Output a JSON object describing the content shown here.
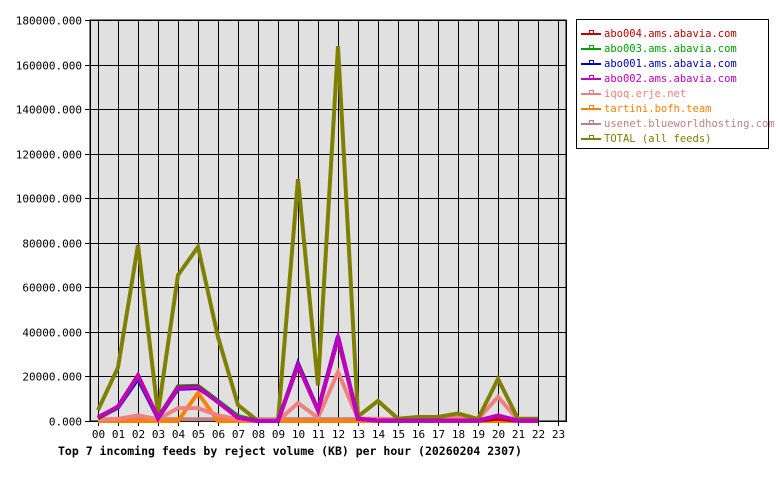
{
  "chart_data": {
    "type": "line",
    "title": "Top 7 incoming feeds by reject volume (KB) per hour (20260204 2307)",
    "xlabel": "",
    "ylabel": "",
    "ylim": [
      0,
      180000
    ],
    "grid": true,
    "legend_position": "right-top",
    "y_ticks": [
      "0.000",
      "20000.000",
      "40000.000",
      "60000.000",
      "80000.000",
      "100000.000",
      "120000.000",
      "140000.000",
      "160000.000",
      "180000.000"
    ],
    "y_tick_values": [
      0,
      20000,
      40000,
      60000,
      80000,
      100000,
      120000,
      140000,
      160000,
      180000
    ],
    "categories": [
      "00",
      "01",
      "02",
      "03",
      "04",
      "05",
      "06",
      "07",
      "08",
      "09",
      "10",
      "11",
      "12",
      "13",
      "14",
      "15",
      "16",
      "17",
      "18",
      "19",
      "20",
      "21",
      "22",
      "23"
    ],
    "series": [
      {
        "name": "abo004.ams.abavia.com",
        "color": "#c00000",
        "values": [
          1500,
          6500,
          20500,
          1500,
          15000,
          15300,
          8500,
          1500,
          0,
          0,
          25000,
          4800,
          37000,
          1000,
          200,
          200,
          200,
          200,
          200,
          200,
          1000,
          200,
          200,
          null
        ]
      },
      {
        "name": "abo003.ams.abavia.com",
        "color": "#00a000",
        "values": [
          1200,
          6300,
          20000,
          1500,
          15500,
          15800,
          9000,
          2200,
          0,
          0,
          25200,
          4800,
          37200,
          1000,
          200,
          200,
          200,
          200,
          200,
          200,
          1200,
          200,
          200,
          null
        ]
      },
      {
        "name": "abo001.ams.abavia.com",
        "color": "#0000c0",
        "values": [
          1300,
          6000,
          19000,
          1200,
          14500,
          14800,
          8800,
          2000,
          0,
          0,
          25800,
          5000,
          38000,
          1000,
          200,
          200,
          200,
          200,
          200,
          200,
          1500,
          200,
          200,
          null
        ]
      },
      {
        "name": "abo002.ams.abavia.com",
        "color": "#c000c0",
        "values": [
          1800,
          6300,
          20300,
          1500,
          14800,
          15200,
          8600,
          1500,
          0,
          0,
          25100,
          4900,
          37300,
          1000,
          200,
          200,
          200,
          200,
          200,
          200,
          2500,
          200,
          200,
          null
        ]
      },
      {
        "name": "iqoq.erje.net",
        "color": "#f08080",
        "values": [
          500,
          1000,
          2500,
          800,
          5800,
          5800,
          2500,
          800,
          0,
          0,
          8100,
          1500,
          22000,
          1000,
          1000,
          800,
          900,
          1000,
          1500,
          800,
          10800,
          500,
          500,
          null
        ]
      },
      {
        "name": "tartini.bofh.team",
        "color": "#ff8000",
        "values": [
          0,
          0,
          0,
          0,
          0,
          12600,
          0,
          0,
          0,
          0,
          0,
          0,
          0,
          0,
          0,
          0,
          0,
          0,
          0,
          0,
          0,
          0,
          0,
          null
        ]
      },
      {
        "name": "usenet.blueworldhosting.com",
        "color": "#c08080",
        "values": [
          800,
          800,
          800,
          800,
          800,
          800,
          800,
          800,
          800,
          800,
          800,
          800,
          800,
          800,
          800,
          800,
          800,
          800,
          800,
          800,
          800,
          800,
          800,
          null
        ]
      },
      {
        "name": "TOTAL (all feeds)",
        "color": "#808000",
        "values": [
          4900,
          24000,
          79000,
          3500,
          65500,
          78100,
          37700,
          7200,
          0,
          0,
          108600,
          16000,
          168300,
          2000,
          9000,
          1000,
          1800,
          1800,
          3400,
          900,
          18900,
          1000,
          1000,
          null
        ]
      }
    ]
  },
  "legend": {
    "items": [
      {
        "label": "abo004.ams.abavia.com",
        "color": "#c00000"
      },
      {
        "label": "abo003.ams.abavia.com",
        "color": "#00a000"
      },
      {
        "label": "abo001.ams.abavia.com",
        "color": "#0000c0"
      },
      {
        "label": "abo002.ams.abavia.com",
        "color": "#c000c0"
      },
      {
        "label": "iqoq.erje.net",
        "color": "#f08080"
      },
      {
        "label": "tartini.bofh.team",
        "color": "#ff8000"
      },
      {
        "label": "usenet.blueworldhosting.com",
        "color": "#c08080"
      },
      {
        "label": "TOTAL (all feeds)",
        "color": "#808000"
      }
    ]
  },
  "colors": {
    "plot_background": "#e0e0e0",
    "grid": "#000000",
    "page_background": "#ffffff"
  }
}
